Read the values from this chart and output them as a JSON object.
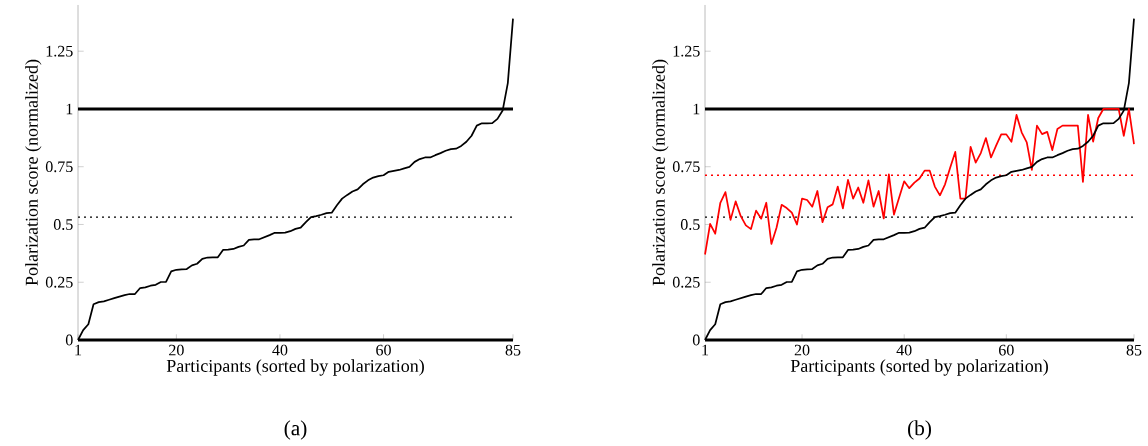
{
  "chart_data": [
    {
      "type": "line",
      "xlabel": "Participants (sorted by polarization)",
      "ylabel": "Polarization score (normalized)",
      "annotations": [
        "(a)"
      ],
      "x": [
        1,
        2,
        3,
        4,
        5,
        6,
        7,
        8,
        9,
        10,
        11,
        12,
        13,
        14,
        15,
        16,
        17,
        18,
        19,
        20,
        21,
        22,
        23,
        24,
        25,
        26,
        27,
        28,
        29,
        30,
        31,
        32,
        33,
        34,
        35,
        36,
        37,
        38,
        39,
        40,
        41,
        42,
        43,
        44,
        45,
        46,
        47,
        48,
        49,
        50,
        51,
        52,
        53,
        54,
        55,
        56,
        57,
        58,
        59,
        60,
        61,
        62,
        63,
        64,
        65,
        66,
        67,
        68,
        69,
        70,
        71,
        72,
        73,
        74,
        75,
        76,
        77,
        78,
        79,
        80,
        81,
        82,
        83,
        84,
        85
      ],
      "xlim": [
        1,
        85
      ],
      "xticks": [
        1,
        20,
        40,
        60,
        85
      ],
      "ylim": [
        0,
        1.45
      ],
      "yticks": [
        0,
        0.25,
        0.5,
        0.75,
        1,
        1.25
      ],
      "series": [
        {
          "color": "#000000",
          "values": [
            0,
            0.043,
            0.068,
            0.155,
            0.164,
            0.167,
            0.174,
            0.181,
            0.188,
            0.194,
            0.199,
            0.199,
            0.225,
            0.228,
            0.235,
            0.239,
            0.251,
            0.252,
            0.297,
            0.304,
            0.306,
            0.307,
            0.323,
            0.33,
            0.351,
            0.357,
            0.358,
            0.358,
            0.39,
            0.391,
            0.394,
            0.403,
            0.409,
            0.433,
            0.436,
            0.436,
            0.445,
            0.454,
            0.464,
            0.464,
            0.465,
            0.471,
            0.481,
            0.486,
            0.51,
            0.532,
            0.536,
            0.542,
            0.549,
            0.551,
            0.583,
            0.612,
            0.628,
            0.643,
            0.652,
            0.674,
            0.691,
            0.703,
            0.709,
            0.713,
            0.728,
            0.732,
            0.736,
            0.743,
            0.749,
            0.771,
            0.783,
            0.79,
            0.79,
            0.8,
            0.809,
            0.819,
            0.826,
            0.828,
            0.84,
            0.858,
            0.884,
            0.928,
            0.938,
            0.938,
            0.939,
            0.957,
            0.993,
            1.112,
            1.391
          ]
        }
      ],
      "ref_lines": [
        {
          "axis": "y",
          "value": 1,
          "color": "#000000",
          "line_style": "solid"
        },
        {
          "axis": "y",
          "value": 0.532,
          "color": "#000000",
          "line_style": "dotted"
        }
      ]
    },
    {
      "type": "line",
      "xlabel": "Participants (sorted by polarization)",
      "ylabel": "Polarization score (normalized)",
      "annotations": [
        "(b)"
      ],
      "x": [
        1,
        2,
        3,
        4,
        5,
        6,
        7,
        8,
        9,
        10,
        11,
        12,
        13,
        14,
        15,
        16,
        17,
        18,
        19,
        20,
        21,
        22,
        23,
        24,
        25,
        26,
        27,
        28,
        29,
        30,
        31,
        32,
        33,
        34,
        35,
        36,
        37,
        38,
        39,
        40,
        41,
        42,
        43,
        44,
        45,
        46,
        47,
        48,
        49,
        50,
        51,
        52,
        53,
        54,
        55,
        56,
        57,
        58,
        59,
        60,
        61,
        62,
        63,
        64,
        65,
        66,
        67,
        68,
        69,
        70,
        71,
        72,
        73,
        74,
        75,
        76,
        77,
        78,
        79,
        80,
        81,
        82,
        83,
        84,
        85
      ],
      "xlim": [
        1,
        85
      ],
      "xticks": [
        1,
        20,
        40,
        60,
        85
      ],
      "ylim": [
        0,
        1.45
      ],
      "yticks": [
        0,
        0.25,
        0.5,
        0.75,
        1,
        1.25
      ],
      "series": [
        {
          "color": "#000000",
          "values": [
            0,
            0.043,
            0.068,
            0.155,
            0.164,
            0.167,
            0.174,
            0.181,
            0.188,
            0.194,
            0.199,
            0.199,
            0.225,
            0.228,
            0.235,
            0.239,
            0.251,
            0.252,
            0.297,
            0.304,
            0.306,
            0.307,
            0.323,
            0.33,
            0.351,
            0.357,
            0.358,
            0.358,
            0.39,
            0.391,
            0.394,
            0.403,
            0.409,
            0.433,
            0.436,
            0.436,
            0.445,
            0.454,
            0.464,
            0.464,
            0.465,
            0.471,
            0.481,
            0.486,
            0.51,
            0.532,
            0.536,
            0.542,
            0.549,
            0.551,
            0.583,
            0.612,
            0.628,
            0.643,
            0.652,
            0.674,
            0.691,
            0.703,
            0.709,
            0.713,
            0.728,
            0.732,
            0.736,
            0.743,
            0.749,
            0.771,
            0.783,
            0.79,
            0.79,
            0.8,
            0.809,
            0.819,
            0.826,
            0.828,
            0.84,
            0.858,
            0.884,
            0.928,
            0.938,
            0.938,
            0.939,
            0.957,
            0.993,
            1.112,
            1.391
          ]
        },
        {
          "color": "#ff0000",
          "values": [
            0.37,
            0.503,
            0.46,
            0.594,
            0.64,
            0.52,
            0.6,
            0.536,
            0.496,
            0.48,
            0.56,
            0.525,
            0.594,
            0.416,
            0.486,
            0.585,
            0.571,
            0.551,
            0.5,
            0.612,
            0.606,
            0.577,
            0.645,
            0.51,
            0.575,
            0.587,
            0.664,
            0.57,
            0.693,
            0.612,
            0.66,
            0.594,
            0.691,
            0.577,
            0.645,
            0.526,
            0.717,
            0.543,
            0.616,
            0.687,
            0.657,
            0.681,
            0.699,
            0.733,
            0.733,
            0.664,
            0.626,
            0.674,
            0.746,
            0.814,
            0.612,
            0.612,
            0.836,
            0.768,
            0.809,
            0.874,
            0.79,
            0.841,
            0.89,
            0.89,
            0.858,
            0.974,
            0.899,
            0.855,
            0.736,
            0.928,
            0.891,
            0.901,
            0.822,
            0.913,
            0.928,
            0.928,
            0.928,
            0.928,
            0.684,
            0.974,
            0.859,
            0.961,
            1,
            1,
            1,
            1,
            0.884,
            1,
            0.848
          ]
        }
      ],
      "ref_lines": [
        {
          "axis": "y",
          "value": 1,
          "color": "#000000",
          "line_style": "solid"
        },
        {
          "axis": "y",
          "value": 0.532,
          "color": "#000000",
          "line_style": "dotted"
        },
        {
          "axis": "y",
          "value": 0.713,
          "color": "#ff0000",
          "line_style": "dotted"
        }
      ]
    }
  ]
}
